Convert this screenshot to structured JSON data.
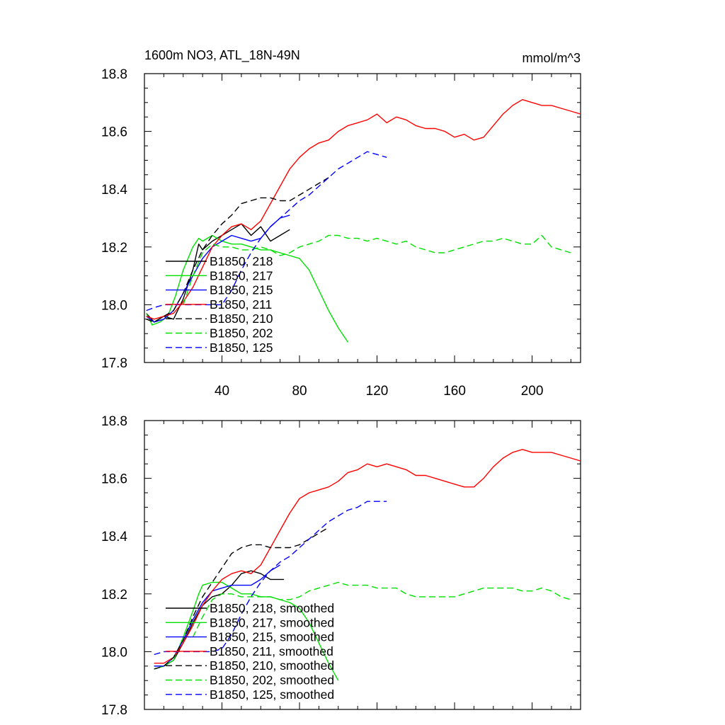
{
  "chart_data": [
    {
      "type": "line",
      "title": "1600m NO3, ATL_18N-49N",
      "units": "mmol/m^3",
      "xlim": [
        0,
        225
      ],
      "ylim": [
        17.8,
        18.8
      ],
      "xticks": [
        40,
        80,
        120,
        160,
        200
      ],
      "xtick_labels": [
        "40",
        "80",
        "120",
        "160",
        "200"
      ],
      "yticks": [
        17.8,
        18.0,
        18.2,
        18.4,
        18.6,
        18.8
      ],
      "ytick_labels": [
        "17.8",
        "18.0",
        "18.2",
        "18.4",
        "18.6",
        "18.8"
      ],
      "legend_position": "lower-left",
      "series": [
        {
          "name": "B1850, 218",
          "color": "#000000",
          "dash": "solid",
          "x": [
            1,
            5,
            10,
            15,
            20,
            25,
            28,
            30,
            35,
            40,
            45,
            50,
            55,
            60,
            65,
            70,
            75
          ],
          "y": [
            17.97,
            17.94,
            17.96,
            17.95,
            18.02,
            18.12,
            18.21,
            18.19,
            18.22,
            18.24,
            18.26,
            18.28,
            18.24,
            18.27,
            18.22,
            18.24,
            18.26
          ]
        },
        {
          "name": "B1850, 217",
          "color": "#00e000",
          "dash": "solid",
          "x": [
            1,
            4,
            8,
            12,
            16,
            20,
            25,
            28,
            30,
            35,
            40,
            45,
            50,
            55,
            60,
            65,
            70,
            75,
            80,
            85,
            90,
            95,
            100,
            105
          ],
          "y": [
            17.97,
            17.93,
            17.94,
            17.96,
            18.03,
            18.12,
            18.2,
            18.23,
            18.22,
            18.24,
            18.22,
            18.21,
            18.21,
            18.2,
            18.19,
            18.19,
            18.18,
            18.17,
            18.16,
            18.12,
            18.05,
            17.98,
            17.92,
            17.87
          ]
        },
        {
          "name": "B1850, 215",
          "color": "#0000ff",
          "dash": "solid",
          "x": [
            1,
            5,
            10,
            15,
            20,
            25,
            30,
            35,
            40,
            45,
            50,
            55,
            60,
            65,
            70,
            75
          ],
          "y": [
            17.96,
            17.94,
            17.95,
            17.98,
            18.04,
            18.1,
            18.16,
            18.2,
            18.22,
            18.24,
            18.23,
            18.22,
            18.23,
            18.27,
            18.3,
            18.31
          ]
        },
        {
          "name": "B1850, 211",
          "color": "#ff0000",
          "dash": "solid",
          "x": [
            1,
            5,
            10,
            15,
            20,
            25,
            30,
            35,
            40,
            45,
            50,
            55,
            60,
            65,
            70,
            75,
            80,
            85,
            90,
            95,
            100,
            105,
            110,
            115,
            120,
            125,
            130,
            135,
            140,
            145,
            150,
            155,
            160,
            165,
            170,
            175,
            180,
            185,
            190,
            195,
            200,
            205,
            210,
            215,
            220,
            225
          ],
          "y": [
            17.96,
            17.95,
            17.96,
            17.97,
            18.01,
            18.06,
            18.13,
            18.2,
            18.24,
            18.27,
            18.28,
            18.26,
            18.29,
            18.35,
            18.41,
            18.47,
            18.51,
            18.54,
            18.56,
            18.57,
            18.6,
            18.62,
            18.63,
            18.64,
            18.66,
            18.63,
            18.65,
            18.64,
            18.62,
            18.61,
            18.61,
            18.6,
            18.58,
            18.59,
            18.57,
            18.58,
            18.62,
            18.66,
            18.69,
            18.71,
            18.7,
            18.69,
            18.69,
            18.68,
            18.67,
            18.66
          ]
        },
        {
          "name": "B1850, 210",
          "color": "#000000",
          "dash": "dash",
          "x": [
            1,
            5,
            10,
            15,
            20,
            25,
            30,
            35,
            40,
            45,
            50,
            55,
            60,
            65,
            70,
            75,
            80,
            85,
            90,
            95
          ],
          "y": [
            17.95,
            17.94,
            17.96,
            17.98,
            18.04,
            18.12,
            18.19,
            18.24,
            18.28,
            18.31,
            18.35,
            18.36,
            18.37,
            18.37,
            18.36,
            18.36,
            18.38,
            18.4,
            18.42,
            18.44
          ]
        },
        {
          "name": "B1850, 202",
          "color": "#00e000",
          "dash": "dash",
          "x": [
            20,
            25,
            30,
            35,
            40,
            45,
            50,
            55,
            60,
            65,
            70,
            75,
            80,
            85,
            90,
            95,
            100,
            105,
            110,
            115,
            120,
            125,
            130,
            135,
            140,
            145,
            150,
            155,
            160,
            165,
            170,
            175,
            180,
            185,
            190,
            195,
            200,
            205,
            210,
            215,
            220
          ],
          "y": [
            18.0,
            18.1,
            18.18,
            18.21,
            18.2,
            18.2,
            18.19,
            18.19,
            18.2,
            18.19,
            18.17,
            18.18,
            18.2,
            18.21,
            18.22,
            18.24,
            18.24,
            18.23,
            18.23,
            18.22,
            18.23,
            18.22,
            18.21,
            18.22,
            18.2,
            18.19,
            18.18,
            18.18,
            18.19,
            18.2,
            18.21,
            18.22,
            18.22,
            18.23,
            18.22,
            18.21,
            18.21,
            18.24,
            18.2,
            18.19,
            18.18
          ]
        },
        {
          "name": "B1850, 125",
          "color": "#0000ff",
          "dash": "dash",
          "x": [
            1,
            5,
            10,
            15,
            20,
            25,
            30,
            35,
            40,
            45,
            50,
            55,
            60,
            65,
            70,
            75,
            80,
            85,
            90,
            95,
            100,
            105,
            110,
            115,
            120,
            125
          ],
          "y": [
            17.98,
            17.99,
            18.0,
            18.0,
            18.0,
            18.0,
            18.0,
            18.0,
            18.0,
            18.05,
            18.12,
            18.18,
            18.23,
            18.27,
            18.3,
            18.33,
            18.36,
            18.38,
            18.41,
            18.44,
            18.47,
            18.49,
            18.51,
            18.53,
            18.52,
            18.51
          ]
        }
      ]
    },
    {
      "type": "line",
      "xlim": [
        0,
        225
      ],
      "ylim": [
        17.8,
        18.8
      ],
      "xticks": [
        40,
        80,
        120,
        160,
        200
      ],
      "xtick_labels": [],
      "yticks": [
        17.8,
        18.0,
        18.2,
        18.4,
        18.6,
        18.8
      ],
      "ytick_labels": [
        "17.8",
        "18.0",
        "18.2",
        "18.4",
        "18.6",
        "18.8"
      ],
      "legend_position": "lower-left",
      "series": [
        {
          "name": "B1850, 218, smoothed",
          "color": "#000000",
          "dash": "solid",
          "x": [
            5,
            10,
            15,
            20,
            25,
            30,
            35,
            40,
            45,
            50,
            55,
            60,
            65,
            70,
            72
          ],
          "y": [
            17.95,
            17.95,
            17.97,
            18.03,
            18.1,
            18.16,
            18.19,
            18.2,
            18.23,
            18.27,
            18.28,
            18.27,
            18.25,
            18.25,
            18.25
          ]
        },
        {
          "name": "B1850, 217, smoothed",
          "color": "#00e000",
          "dash": "solid",
          "x": [
            5,
            10,
            15,
            20,
            25,
            28,
            30,
            35,
            40,
            45,
            50,
            55,
            60,
            65,
            70,
            75,
            80,
            85,
            90,
            95,
            100
          ],
          "y": [
            17.94,
            17.95,
            17.97,
            18.05,
            18.14,
            18.2,
            18.23,
            18.24,
            18.24,
            18.22,
            18.2,
            18.2,
            18.19,
            18.19,
            18.18,
            18.17,
            18.15,
            18.1,
            18.03,
            17.96,
            17.9
          ]
        },
        {
          "name": "B1850, 215, smoothed",
          "color": "#0000ff",
          "dash": "solid",
          "x": [
            5,
            10,
            15,
            20,
            25,
            30,
            35,
            40,
            45,
            50,
            55,
            60,
            65,
            70
          ],
          "y": [
            17.95,
            17.95,
            17.98,
            18.04,
            18.11,
            18.17,
            18.21,
            18.22,
            18.23,
            18.23,
            18.23,
            18.25,
            18.28,
            18.3
          ]
        },
        {
          "name": "B1850, 211, smoothed",
          "color": "#ff0000",
          "dash": "solid",
          "x": [
            5,
            10,
            15,
            20,
            25,
            30,
            35,
            40,
            45,
            50,
            55,
            60,
            65,
            70,
            75,
            80,
            85,
            90,
            95,
            100,
            105,
            110,
            115,
            120,
            125,
            130,
            135,
            140,
            145,
            150,
            155,
            160,
            165,
            170,
            175,
            180,
            185,
            190,
            195,
            200,
            205,
            210,
            215,
            220,
            225
          ],
          "y": [
            17.96,
            17.96,
            17.98,
            18.03,
            18.09,
            18.16,
            18.21,
            18.25,
            18.27,
            18.28,
            18.27,
            18.3,
            18.36,
            18.42,
            18.48,
            18.53,
            18.55,
            18.56,
            18.57,
            18.59,
            18.62,
            18.63,
            18.65,
            18.64,
            18.65,
            18.64,
            18.63,
            18.61,
            18.61,
            18.6,
            18.59,
            18.58,
            18.57,
            18.57,
            18.6,
            18.64,
            18.67,
            18.69,
            18.7,
            18.69,
            18.69,
            18.69,
            18.68,
            18.67,
            18.66
          ]
        },
        {
          "name": "B1850, 210, smoothed",
          "color": "#000000",
          "dash": "dash",
          "x": [
            5,
            10,
            15,
            20,
            25,
            30,
            35,
            40,
            45,
            50,
            55,
            60,
            65,
            70,
            75,
            80,
            85,
            90,
            95
          ],
          "y": [
            17.94,
            17.95,
            17.98,
            18.04,
            18.12,
            18.19,
            18.24,
            18.29,
            18.34,
            18.36,
            18.37,
            18.37,
            18.36,
            18.36,
            18.36,
            18.37,
            18.39,
            18.41,
            18.43
          ]
        },
        {
          "name": "B1850, 202, smoothed",
          "color": "#00e000",
          "dash": "dash",
          "x": [
            25,
            30,
            35,
            40,
            45,
            50,
            55,
            60,
            65,
            70,
            75,
            80,
            85,
            90,
            95,
            100,
            105,
            110,
            115,
            120,
            125,
            130,
            135,
            140,
            145,
            150,
            155,
            160,
            165,
            170,
            175,
            180,
            185,
            190,
            195,
            200,
            205,
            210,
            215,
            220
          ],
          "y": [
            18.05,
            18.12,
            18.18,
            18.2,
            18.2,
            18.19,
            18.19,
            18.19,
            18.19,
            18.18,
            18.18,
            18.19,
            18.21,
            18.22,
            18.23,
            18.24,
            18.23,
            18.23,
            18.23,
            18.22,
            18.22,
            18.22,
            18.2,
            18.19,
            18.19,
            18.19,
            18.19,
            18.19,
            18.2,
            18.21,
            18.22,
            18.22,
            18.22,
            18.22,
            18.21,
            18.21,
            18.22,
            18.21,
            18.19,
            18.18
          ]
        },
        {
          "name": "B1850, 125, smoothed",
          "color": "#0000ff",
          "dash": "dash",
          "x": [
            5,
            10,
            15,
            20,
            25,
            30,
            35,
            40,
            45,
            50,
            55,
            60,
            65,
            70,
            75,
            80,
            85,
            90,
            95,
            100,
            105,
            110,
            115,
            120,
            125
          ],
          "y": [
            17.99,
            18.0,
            18.0,
            18.0,
            18.0,
            18.0,
            18.0,
            18.01,
            18.06,
            18.13,
            18.19,
            18.24,
            18.28,
            18.31,
            18.33,
            18.36,
            18.39,
            18.42,
            18.45,
            18.47,
            18.49,
            18.5,
            18.52,
            18.52,
            18.52
          ]
        }
      ]
    }
  ]
}
